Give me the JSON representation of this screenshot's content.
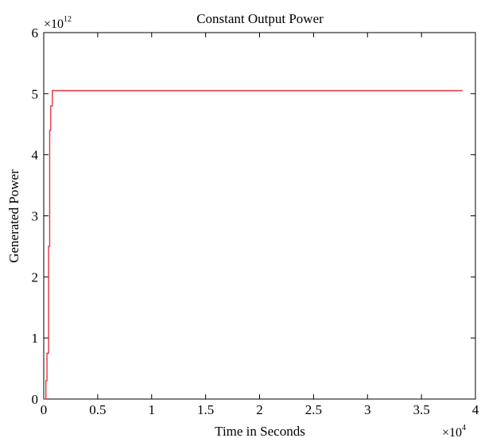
{
  "chart_data": {
    "type": "line",
    "title": "Constant Output Power",
    "xlabel": "Time in Seconds",
    "ylabel": "Generated Power",
    "x_multiplier": {
      "base": "×10",
      "exponent": "4"
    },
    "y_multiplier": {
      "base": "×10",
      "exponent": "12"
    },
    "xlim": [
      0,
      4
    ],
    "ylim": [
      0,
      6
    ],
    "x_ticks": [
      0,
      0.5,
      1,
      1.5,
      2,
      2.5,
      3,
      3.5,
      4
    ],
    "x_tick_labels": [
      "0",
      "0.5",
      "1",
      "1.5",
      "2",
      "2.5",
      "3",
      "3.5",
      "4"
    ],
    "y_ticks": [
      0,
      1,
      2,
      3,
      4,
      5,
      6
    ],
    "y_tick_labels": [
      "0",
      "1",
      "2",
      "3",
      "4",
      "5",
      "6"
    ],
    "grid": false,
    "series": [
      {
        "color": "#e8323c",
        "x": [
          0,
          0.02,
          0.02,
          0.03,
          0.03,
          0.045,
          0.045,
          0.055,
          0.055,
          0.065,
          0.065,
          0.08,
          0.08,
          3.88
        ],
        "y": [
          0,
          0,
          0.3,
          0.3,
          0.75,
          0.75,
          2.5,
          2.5,
          4.4,
          4.4,
          4.8,
          4.8,
          5.05,
          5.05
        ]
      }
    ]
  }
}
